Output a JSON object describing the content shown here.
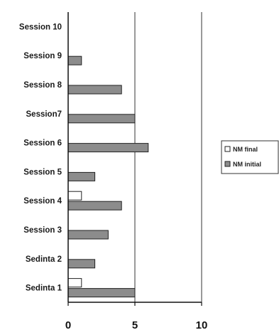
{
  "chart_data": {
    "type": "bar",
    "orientation": "horizontal",
    "categories": [
      "Sedinta 1",
      "Sedinta 2",
      "Session 3",
      "Session 4",
      "Session 5",
      "Session 6",
      "Session7",
      "Session 8",
      "Session 9",
      "Session 10"
    ],
    "series": [
      {
        "name": "NM final",
        "values": [
          1,
          0,
          0,
          1,
          0,
          0,
          0,
          0,
          0,
          0
        ],
        "color": "#ffffff"
      },
      {
        "name": "NM initial",
        "values": [
          5,
          2,
          3,
          4,
          2,
          6,
          5,
          4,
          1,
          0
        ],
        "color": "#8c8c8c"
      }
    ],
    "xticks": [
      "0",
      "5",
      "10"
    ],
    "xlim": [
      0,
      10
    ],
    "gridlines_x": [
      5,
      10
    ],
    "legend_position": "right",
    "title": "",
    "xlabel": "",
    "ylabel": ""
  }
}
